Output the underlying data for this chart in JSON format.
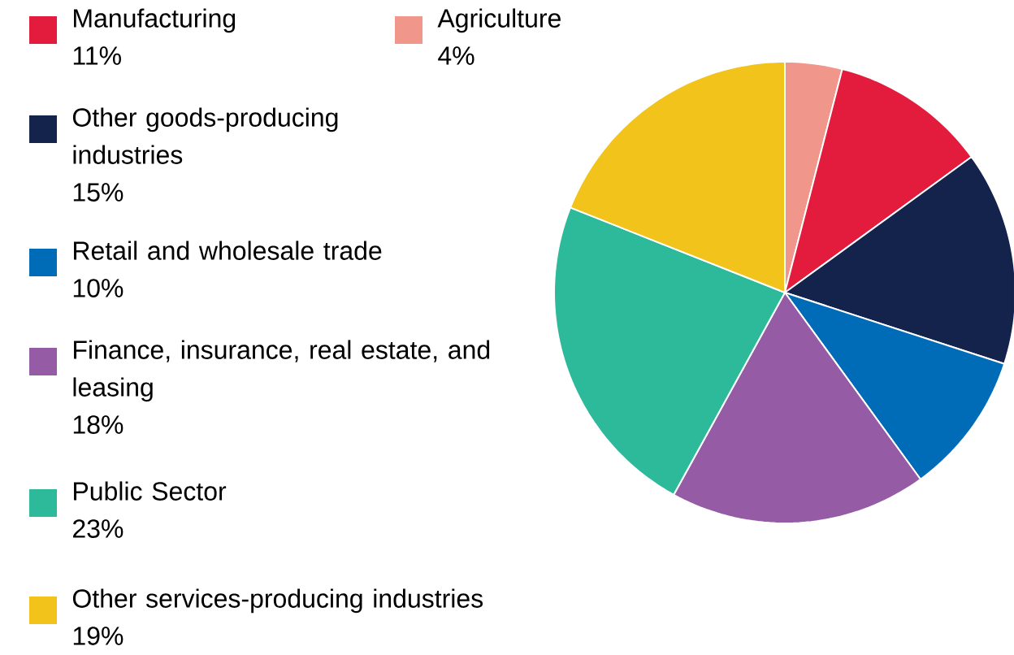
{
  "chart_data": {
    "type": "pie",
    "categories": [
      "Agriculture",
      "Manufacturing",
      "Other goods-producing industries",
      "Retail and wholesale trade",
      "Finance, insurance, real estate, and leasing",
      "Public Sector",
      "Other services-producing industries"
    ],
    "values": [
      4,
      11,
      15,
      10,
      18,
      23,
      19
    ],
    "value_labels": [
      "4%",
      "11%",
      "15%",
      "10%",
      "18%",
      "23%",
      "19%"
    ],
    "colors": [
      "#f0968a",
      "#e31c3d",
      "#13234b",
      "#006bb6",
      "#955ba5",
      "#2dba9b",
      "#f2c31b"
    ],
    "legend": "left"
  }
}
